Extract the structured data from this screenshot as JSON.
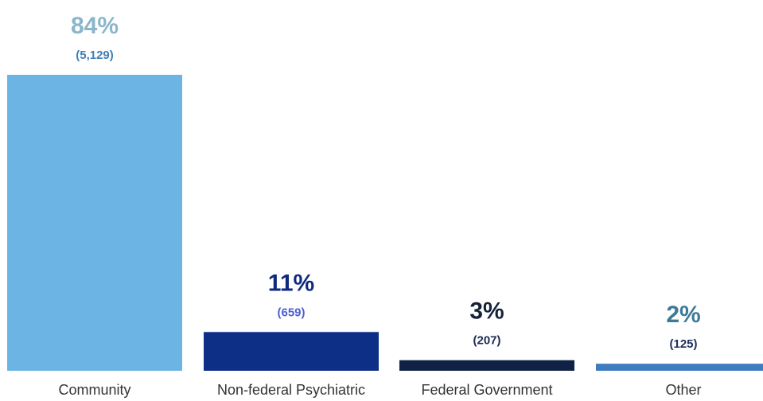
{
  "chart_data": {
    "type": "bar",
    "title": "",
    "xlabel": "",
    "ylabel": "",
    "ylim": [
      0,
      100
    ],
    "grid": false,
    "categories": [
      "Community",
      "Non-federal Psychiatric",
      "Federal Government",
      "Other"
    ],
    "values": [
      84,
      11,
      3,
      2
    ],
    "percent_labels": [
      "84%",
      "11%",
      "3%",
      "2%"
    ],
    "count_labels": [
      "(5,129)",
      "(659)",
      "(207)",
      "(125)"
    ],
    "bar_colors": [
      "#6cb4e4",
      "#0d2f86",
      "#0f2245",
      "#3e7bbf"
    ],
    "percent_label_colors": [
      "#8ab6cc",
      "#0d2a80",
      "#152238",
      "#3c7a98"
    ],
    "count_label_colors": [
      "#3f7fb5",
      "#4c5fcf",
      "#1a2a52",
      "#1c2e5e"
    ]
  }
}
